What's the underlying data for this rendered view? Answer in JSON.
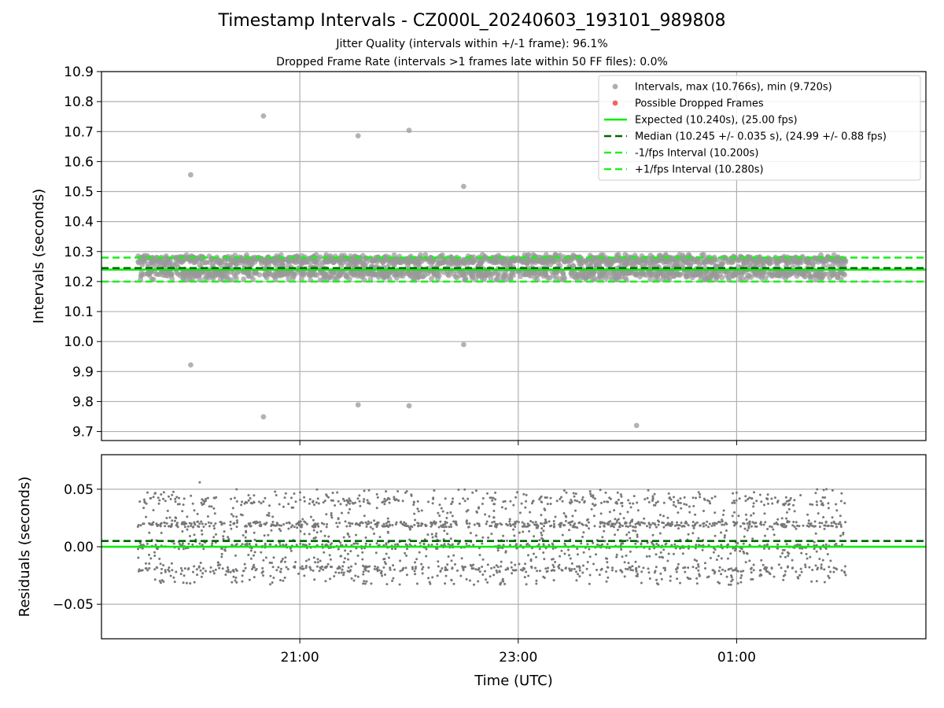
{
  "title": "Timestamp Intervals - CZ000L_20240603_193101_989808",
  "subtitle_jitter": "Jitter Quality (intervals within +/-1 frame): 96.1%",
  "subtitle_dropped": "Dropped Frame Rate (intervals >1 frames late within 50 FF files): 0.0%",
  "colors": {
    "interval_points": "#999999",
    "dropped_points": "#ee5555",
    "expected_line": "#00ee00",
    "median_line": "#006400",
    "fps_interval_line": "#22ee22",
    "residual_points": "#777777",
    "grid": "#b0b0b0"
  },
  "chart_data": [
    {
      "type": "scatter",
      "panel": "intervals",
      "xlabel": "",
      "ylabel": "Intervals (seconds)",
      "ylim": [
        9.67,
        10.9
      ],
      "yticks": [
        "9.7",
        "9.8",
        "9.9",
        "10.0",
        "10.1",
        "10.2",
        "10.3",
        "10.4",
        "10.5",
        "10.6",
        "10.7",
        "10.8",
        "10.9"
      ],
      "x_axis": "time (UTC)",
      "xlim": [
        "2024-06-03 19:11",
        "2024-06-04 02:44"
      ],
      "xticks": [
        "21:00",
        "23:00",
        "01:00"
      ],
      "grid": true,
      "legend_position": "top-right",
      "legend": [
        "Intervals, max (10.766s), min (9.720s)",
        "Possible Dropped Frames",
        "Expected (10.240s), (25.00 fps)",
        "Median (10.245 +/- 0.035 s), (24.99 +/- 0.88 fps)",
        "-1/fps Interval (10.200s)",
        "+1/fps Interval (10.280s)"
      ],
      "dense_band": {
        "x_start": "2024-06-03 19:31",
        "x_end": "2024-06-04 02:00",
        "y_min": 10.205,
        "y_max": 10.29,
        "approx_count": 2280
      },
      "outliers": [
        {
          "x": "2024-06-03 20:00",
          "y": 10.556
        },
        {
          "x": "2024-06-03 20:00",
          "y": 9.922
        },
        {
          "x": "2024-06-03 20:40",
          "y": 10.752
        },
        {
          "x": "2024-06-03 20:40",
          "y": 9.749
        },
        {
          "x": "2024-06-03 21:32",
          "y": 10.686
        },
        {
          "x": "2024-06-03 21:32",
          "y": 9.789
        },
        {
          "x": "2024-06-03 22:00",
          "y": 10.704
        },
        {
          "x": "2024-06-03 22:00",
          "y": 9.786
        },
        {
          "x": "2024-06-03 22:30",
          "y": 10.517
        },
        {
          "x": "2024-06-03 22:30",
          "y": 9.99
        },
        {
          "x": "2024-06-04 00:05",
          "y": 9.72
        }
      ],
      "lines": [
        {
          "name": "Expected",
          "y": 10.24,
          "style": "solid"
        },
        {
          "name": "Median",
          "y": 10.245,
          "style": "dashed"
        },
        {
          "name": "-1/fps Interval",
          "y": 10.2,
          "style": "dashed"
        },
        {
          "name": "+1/fps Interval",
          "y": 10.28,
          "style": "dashed"
        }
      ]
    },
    {
      "type": "scatter",
      "panel": "residuals",
      "xlabel": "Time (UTC)",
      "ylabel": "Residuals (seconds)",
      "ylim": [
        -0.08,
        0.08
      ],
      "yticks": [
        "−0.05",
        "0.00",
        "0.05"
      ],
      "xlim": [
        "2024-06-03 19:11",
        "2024-06-04 02:44"
      ],
      "xticks": [
        "21:00",
        "23:00",
        "01:00"
      ],
      "grid": true,
      "cloud": {
        "x_start": "2024-06-03 19:31",
        "x_end": "2024-06-04 02:00",
        "y_min": -0.033,
        "y_max": 0.05,
        "approx_count": 2280
      },
      "max_point": {
        "x": "2024-06-03 20:05",
        "y": 0.056
      },
      "lines": [
        {
          "name": "Expected",
          "y": 0.0,
          "style": "solid"
        },
        {
          "name": "Median",
          "y": 0.005,
          "style": "dashed"
        }
      ]
    }
  ]
}
